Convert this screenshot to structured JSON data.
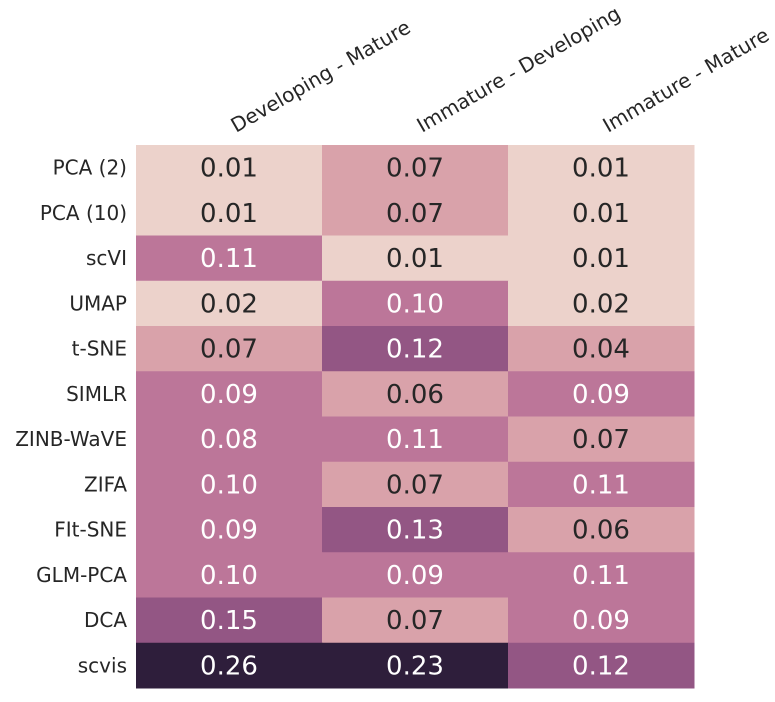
{
  "chart_data": {
    "type": "heatmap",
    "title": "",
    "xlabel": "",
    "ylabel": "",
    "columns": [
      "Developing - Mature",
      "Immature - Developing",
      "Immature - Mature"
    ],
    "rows": [
      "PCA (2)",
      "PCA (10)",
      "scVI",
      "UMAP",
      "t-SNE",
      "SIMLR",
      "ZINB-WaVE",
      "ZIFA",
      "FIt-SNE",
      "GLM-PCA",
      "DCA",
      "scvis"
    ],
    "values": [
      [
        0.01,
        0.07,
        0.01
      ],
      [
        0.01,
        0.07,
        0.01
      ],
      [
        0.11,
        0.01,
        0.01
      ],
      [
        0.02,
        0.1,
        0.02
      ],
      [
        0.07,
        0.12,
        0.04
      ],
      [
        0.09,
        0.06,
        0.09
      ],
      [
        0.08,
        0.11,
        0.07
      ],
      [
        0.1,
        0.07,
        0.11
      ],
      [
        0.09,
        0.13,
        0.06
      ],
      [
        0.1,
        0.09,
        0.11
      ],
      [
        0.15,
        0.07,
        0.09
      ],
      [
        0.26,
        0.23,
        0.12
      ]
    ],
    "labels": [
      [
        "0.01",
        "0.07",
        "0.01"
      ],
      [
        "0.01",
        "0.07",
        "0.01"
      ],
      [
        "0.11",
        "0.01",
        "0.01"
      ],
      [
        "0.02",
        "0.10",
        "0.02"
      ],
      [
        "0.07",
        "0.12",
        "0.04"
      ],
      [
        "0.09",
        "0.06",
        "0.09"
      ],
      [
        "0.08",
        "0.11",
        "0.07"
      ],
      [
        "0.10",
        "0.07",
        "0.11"
      ],
      [
        "0.09",
        "0.13",
        "0.06"
      ],
      [
        "0.10",
        "0.09",
        "0.11"
      ],
      [
        "0.15",
        "0.07",
        "0.09"
      ],
      [
        "0.26",
        "0.23",
        "0.12"
      ]
    ],
    "colorbar": false,
    "colors": {
      "very_low": "#ecd2cb",
      "low": "#d9a2aa",
      "mid": "#bc7699",
      "high": "#935684",
      "higher": "#663b6a",
      "max": "#2e1e3b",
      "text_dark": "#262626",
      "text_light": "#ffffff"
    }
  }
}
